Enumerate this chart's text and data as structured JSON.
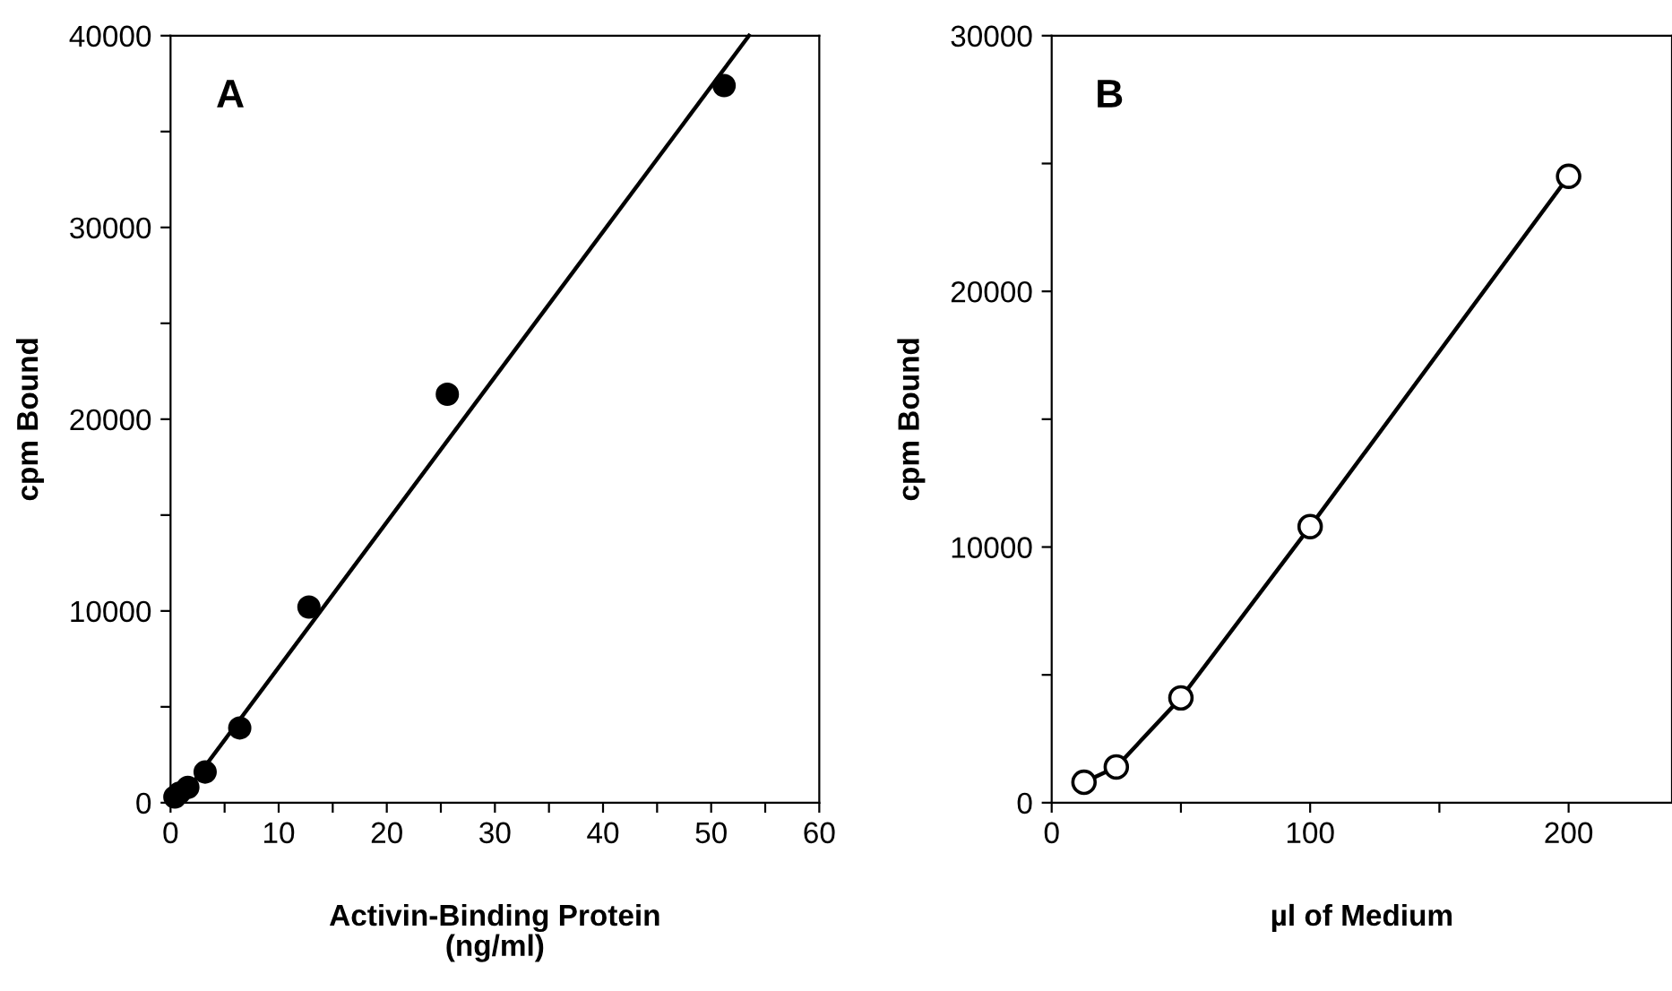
{
  "chart_data": [
    {
      "type": "scatter",
      "xlabel": "Activin-Binding Protein\n(ng/ml)",
      "ylabel": "cpm Bound",
      "annotations": [
        "A"
      ],
      "series": [
        {
          "color": "#000000",
          "marker": "circle",
          "x": [
            0.4,
            0.8,
            1.6,
            3.2,
            6.4,
            12.8,
            25.6,
            51.2
          ],
          "values": [
            300,
            500,
            800,
            1600,
            3900,
            10200,
            21300,
            37400
          ]
        },
        {
          "type": "line",
          "color": "#000000",
          "marker": "none",
          "line_style": "solid",
          "x": [
            2,
            53.5
          ],
          "values": [
            1000,
            40000
          ]
        }
      ],
      "xlim": [
        0,
        60
      ],
      "ylim": [
        0,
        40000
      ],
      "xticks": [
        0,
        {
          "value": 5,
          "label": null
        },
        10,
        {
          "value": 15,
          "label": null
        },
        20,
        {
          "value": 25,
          "label": null
        },
        30,
        {
          "value": 35,
          "label": null
        },
        40,
        {
          "value": 45,
          "label": null
        },
        50,
        {
          "value": 55,
          "label": null
        },
        60
      ],
      "yticks": [
        0,
        {
          "value": 5000,
          "label": null
        },
        10000,
        {
          "value": 15000,
          "label": null
        },
        20000,
        {
          "value": 25000,
          "label": null
        },
        30000,
        {
          "value": 35000,
          "label": null
        },
        40000
      ],
      "grid": false,
      "legend": false
    },
    {
      "type": "line",
      "xlabel": "µl of Medium",
      "ylabel": "cpm Bound",
      "annotations": [
        "B"
      ],
      "series": [
        {
          "color": "#000000",
          "marker": "circle",
          "line_style": "solid",
          "x": [
            12.5,
            25,
            50,
            100,
            200
          ],
          "values": [
            800,
            1400,
            4100,
            10800,
            24500
          ]
        }
      ],
      "xlim": [
        0,
        240
      ],
      "ylim": [
        0,
        30000
      ],
      "xticks": [
        0,
        {
          "value": 50,
          "label": null
        },
        100,
        {
          "value": 150,
          "label": null
        },
        200
      ],
      "yticks": [
        0,
        {
          "value": 5000,
          "label": null
        },
        10000,
        {
          "value": 15000,
          "label": null
        },
        20000,
        {
          "value": 25000,
          "label": null
        },
        30000
      ],
      "grid": false,
      "legend": false
    }
  ]
}
